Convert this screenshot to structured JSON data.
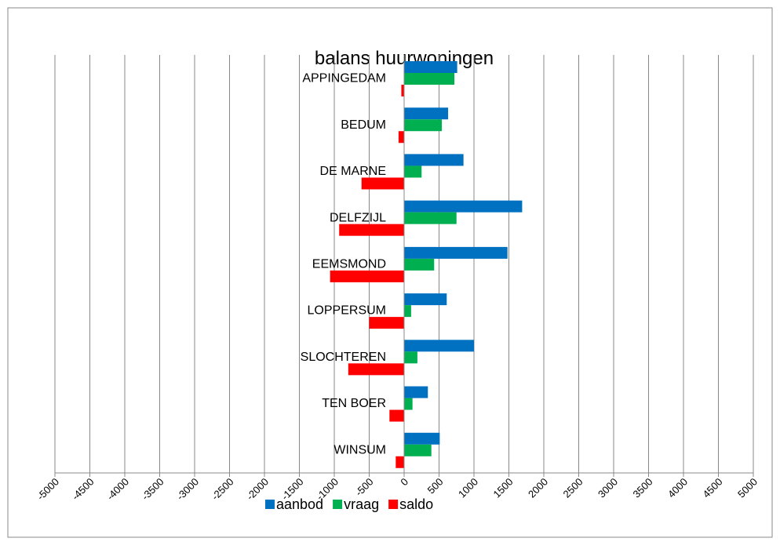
{
  "chart_data": {
    "type": "bar",
    "orientation": "horizontal",
    "title": "balans huurwoningen",
    "categories": [
      "APPINGEDAM",
      "BEDUM",
      "DE MARNE",
      "DELFZIJL",
      "EEMSMOND",
      "LOPPERSUM",
      "SLOCHTEREN",
      "TEN BOER",
      "WINSUM"
    ],
    "series": [
      {
        "name": "aanbod",
        "color": "#0070c0",
        "values": [
          760,
          630,
          850,
          1690,
          1480,
          610,
          1000,
          340,
          510
        ]
      },
      {
        "name": "vraag",
        "color": "#00b050",
        "values": [
          720,
          540,
          250,
          750,
          430,
          100,
          190,
          120,
          390
        ]
      },
      {
        "name": "saldo",
        "color": "#ff0000",
        "values": [
          -40,
          -80,
          -610,
          -930,
          -1060,
          -500,
          -800,
          -210,
          -120
        ]
      }
    ],
    "xlim": [
      -5000,
      5000
    ],
    "xticks": [
      -5000,
      -4500,
      -4000,
      -3500,
      -3000,
      -2500,
      -2000,
      -1500,
      -1000,
      -500,
      0,
      500,
      1000,
      1500,
      2000,
      2500,
      3000,
      3500,
      4000,
      4500,
      5000
    ],
    "grid": true,
    "legend": "bottom"
  }
}
